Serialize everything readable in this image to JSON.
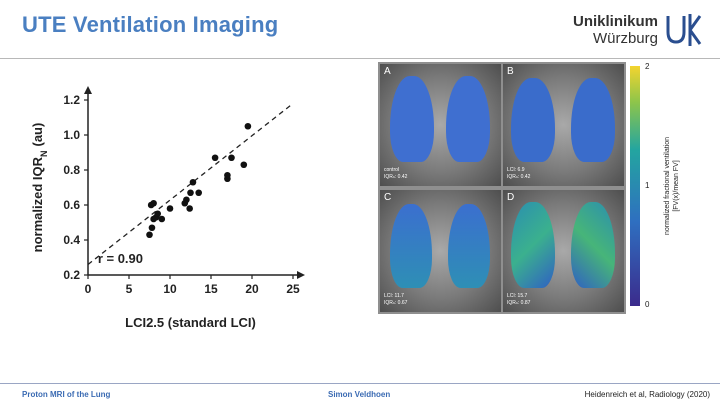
{
  "header": {
    "title": "UTE Ventilation Imaging",
    "logo_line1": "Uniklinikum",
    "logo_line2": "Würzburg",
    "logo_mark": "UK"
  },
  "chart_data": {
    "type": "scatter",
    "xlabel": "LCI2.5 (standard LCI)",
    "ylabel": "normalized IQR",
    "ylabel_subscript": "N",
    "ylabel_unit": "(au)",
    "xlim": [
      0,
      25
    ],
    "ylim": [
      0.2,
      1.2
    ],
    "xticks": [
      0,
      5,
      10,
      15,
      20,
      25
    ],
    "yticks": [
      0.2,
      0.4,
      0.6,
      0.8,
      1.0,
      1.2
    ],
    "annotation": "r = 0.90",
    "points": [
      [
        7.5,
        0.43
      ],
      [
        7.8,
        0.47
      ],
      [
        8.0,
        0.52
      ],
      [
        8.3,
        0.53
      ],
      [
        8.5,
        0.55
      ],
      [
        9.0,
        0.52
      ],
      [
        7.7,
        0.6
      ],
      [
        8.0,
        0.61
      ],
      [
        10.0,
        0.58
      ],
      [
        11.8,
        0.61
      ],
      [
        12.0,
        0.63
      ],
      [
        12.4,
        0.58
      ],
      [
        12.5,
        0.67
      ],
      [
        12.8,
        0.73
      ],
      [
        13.5,
        0.67
      ],
      [
        15.5,
        0.87
      ],
      [
        17.0,
        0.75
      ],
      [
        17.0,
        0.77
      ],
      [
        17.5,
        0.87
      ],
      [
        19.0,
        0.83
      ],
      [
        19.5,
        1.05
      ]
    ],
    "fit_line": [
      [
        0,
        0.26
      ],
      [
        25,
        1.18
      ]
    ]
  },
  "figure": {
    "panels": [
      {
        "letter": "A",
        "lines": [
          "control",
          "IQRₙ:  0.42"
        ]
      },
      {
        "letter": "B",
        "lines": [
          "LCI:     6.9",
          "IQRₙ:  0.42"
        ]
      },
      {
        "letter": "C",
        "lines": [
          "LCI:     11.7",
          "IQRₙ:  0.67"
        ]
      },
      {
        "letter": "D",
        "lines": [
          "LCI:     15.7",
          "IQRₙ:  0.87"
        ]
      }
    ],
    "colorbar": {
      "max": "2",
      "mid": "1",
      "min": "0",
      "label_line1": "normalized fractional ventilation",
      "label_line2": "[FV(x)/mean FV]"
    }
  },
  "footer": {
    "left": "Proton MRI of the Lung",
    "middle": "Simon Veldhoen",
    "right": "Heidenreich et al, Radiology (2020)"
  },
  "colors": {
    "title": "#4a7fc1",
    "logo_mark": "#2a4e8f",
    "footer_text": "#3b6bb3"
  }
}
